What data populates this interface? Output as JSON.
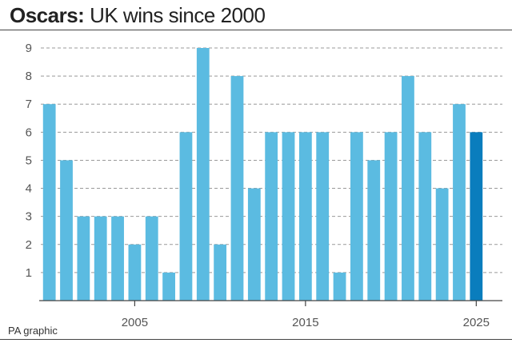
{
  "header": {
    "title_bold": "Oscars:",
    "title_rest": "UK wins since 2000"
  },
  "footer": {
    "credit": "PA graphic"
  },
  "colors": {
    "bar": "#5bbbe1",
    "highlight": "#0a7dbd",
    "grid": "#999999",
    "axis": "#444444"
  },
  "chart_data": {
    "type": "bar",
    "title": "Oscars: UK wins since 2000",
    "x": [
      2000,
      2001,
      2002,
      2003,
      2004,
      2005,
      2006,
      2007,
      2008,
      2009,
      2010,
      2011,
      2012,
      2013,
      2014,
      2015,
      2016,
      2017,
      2018,
      2019,
      2020,
      2021,
      2022,
      2023,
      2024,
      2025
    ],
    "values": [
      7,
      5,
      3,
      3,
      3,
      2,
      3,
      1,
      6,
      9,
      2,
      8,
      4,
      6,
      6,
      6,
      6,
      1,
      6,
      5,
      6,
      8,
      6,
      4,
      7,
      6
    ],
    "highlight": [
      2025
    ],
    "xticks": [
      2005,
      2015,
      2025
    ],
    "xtick_labels": [
      "2005",
      "2015",
      "2025"
    ],
    "yticks": [
      1,
      2,
      3,
      4,
      5,
      6,
      7,
      8,
      9
    ],
    "ytick_labels": [
      "1",
      "2",
      "3",
      "4",
      "5",
      "6",
      "7",
      "8",
      "9"
    ],
    "ylim": [
      0,
      9
    ],
    "grid": true,
    "xlabel": "",
    "ylabel": ""
  }
}
